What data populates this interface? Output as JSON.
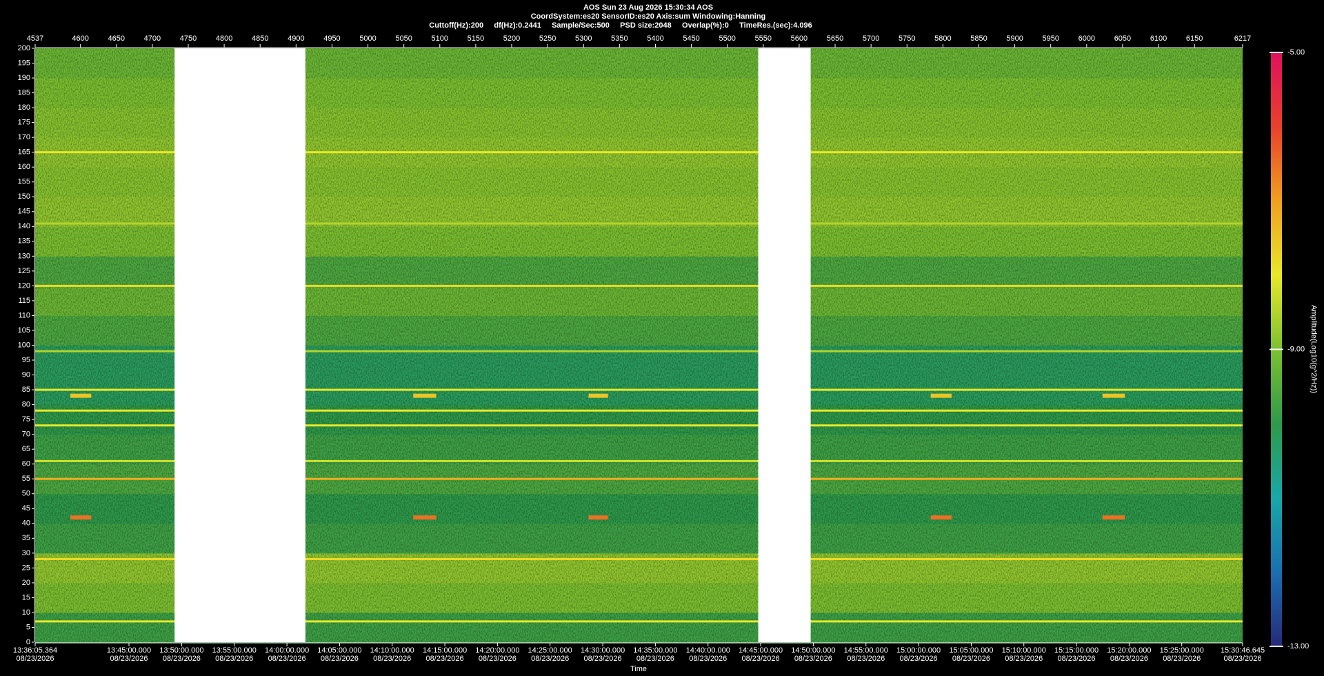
{
  "chart_data": {
    "type": "spectrogram",
    "title": "AOS  Sun 23 Aug 2026 15:30:34  AOS",
    "subtitle": "CoordSystem:es20   SensorID:es20   Axis:sum   Windowing:Hanning",
    "settings_line": "Cuttoff(Hz):200     df(Hz):0.2441     Sample/Sec:500     PSD size:2048     Overlap(%):0     TimeRes.(sec):4.096",
    "xlabel": "Time",
    "xlim": [
      4537,
      6217
    ],
    "xticks": [
      4537,
      4600,
      4650,
      4700,
      4750,
      4800,
      4850,
      4900,
      4950,
      5000,
      5050,
      5100,
      5150,
      5200,
      5250,
      5300,
      5350,
      5400,
      5450,
      5500,
      5550,
      5600,
      5650,
      5700,
      5750,
      5800,
      5850,
      5900,
      5950,
      6000,
      6050,
      6100,
      6150,
      6217
    ],
    "time_ticks": [
      {
        "value": 4537,
        "label": "13:36:05.364",
        "date": "08/23/2026"
      },
      {
        "value": 4667.5,
        "label": "13:45:00.000",
        "date": "08/23/2026"
      },
      {
        "value": 4740.8,
        "label": "13:50:00.000",
        "date": "08/23/2026"
      },
      {
        "value": 4814.0,
        "label": "13:55:00.000",
        "date": "08/23/2026"
      },
      {
        "value": 4887.3,
        "label": "14:00:00.000",
        "date": "08/23/2026"
      },
      {
        "value": 4960.5,
        "label": "14:05:00.000",
        "date": "08/23/2026"
      },
      {
        "value": 5033.7,
        "label": "14:10:00.000",
        "date": "08/23/2026"
      },
      {
        "value": 5107.0,
        "label": "14:15:00.000",
        "date": "08/23/2026"
      },
      {
        "value": 5180.2,
        "label": "14:20:00.000",
        "date": "08/23/2026"
      },
      {
        "value": 5253.4,
        "label": "14:25:00.000",
        "date": "08/23/2026"
      },
      {
        "value": 5326.7,
        "label": "14:30:00.000",
        "date": "08/23/2026"
      },
      {
        "value": 5399.9,
        "label": "14:35:00.000",
        "date": "08/23/2026"
      },
      {
        "value": 5473.2,
        "label": "14:40:00.000",
        "date": "08/23/2026"
      },
      {
        "value": 5546.4,
        "label": "14:45:00.000",
        "date": "08/23/2026"
      },
      {
        "value": 5619.6,
        "label": "14:50:00.000",
        "date": "08/23/2026"
      },
      {
        "value": 5692.9,
        "label": "14:55:00.000",
        "date": "08/23/2026"
      },
      {
        "value": 5766.1,
        "label": "15:00:00.000",
        "date": "08/23/2026"
      },
      {
        "value": 5839.4,
        "label": "15:05:00.000",
        "date": "08/23/2026"
      },
      {
        "value": 5912.6,
        "label": "15:10:00.000",
        "date": "08/23/2026"
      },
      {
        "value": 5985.8,
        "label": "15:15:00.000",
        "date": "08/23/2026"
      },
      {
        "value": 6059.1,
        "label": "15:20:00.000",
        "date": "08/23/2026"
      },
      {
        "value": 6132.3,
        "label": "15:25:00.000",
        "date": "08/23/2026"
      },
      {
        "value": 6217,
        "label": "15:30:46.645",
        "date": "08/23/2026"
      }
    ],
    "ylim": [
      0,
      200
    ],
    "yticks": [
      0,
      5,
      10,
      15,
      20,
      25,
      30,
      35,
      40,
      45,
      50,
      55,
      60,
      65,
      70,
      75,
      80,
      85,
      90,
      95,
      100,
      105,
      110,
      115,
      120,
      125,
      130,
      135,
      140,
      145,
      150,
      155,
      160,
      165,
      170,
      175,
      180,
      185,
      190,
      195,
      200
    ],
    "freq_bins": [
      0,
      10,
      20,
      30,
      40,
      50,
      60,
      70,
      80,
      90,
      100,
      110,
      120,
      130,
      140,
      150,
      160,
      170,
      180,
      190,
      200
    ],
    "amplitude": [
      -9.8,
      -9.0,
      -8.8,
      -9.8,
      -10.0,
      -9.6,
      -9.8,
      -10.0,
      -10.2,
      -10.2,
      -9.6,
      -9.2,
      -9.6,
      -9.0,
      -8.8,
      -8.9,
      -8.8,
      -8.9,
      -9.0,
      -9.2
    ],
    "tones": {
      "freq": [
        165,
        141,
        120,
        98,
        85,
        78,
        73,
        61,
        55,
        28,
        7
      ],
      "amplitude": [
        -8.0,
        -8.5,
        -7.8,
        -8.5,
        -8.0,
        -8.0,
        -8.0,
        -8.2,
        -7.2,
        -7.8,
        -8.0
      ]
    },
    "events": [
      {
        "x": [
          4586,
          4615
        ],
        "freq": 42,
        "amplitude": -6.5
      },
      {
        "x": [
          5063,
          5095
        ],
        "freq": 42,
        "amplitude": -6.5
      },
      {
        "x": [
          5307,
          5334
        ],
        "freq": 42,
        "amplitude": -6.5
      },
      {
        "x": [
          5783,
          5812
        ],
        "freq": 42,
        "amplitude": -6.5
      },
      {
        "x": [
          6022,
          6053
        ],
        "freq": 42,
        "amplitude": -6.5
      },
      {
        "x": [
          4586,
          4615
        ],
        "freq": 83,
        "amplitude": -7.5
      },
      {
        "x": [
          5063,
          5095
        ],
        "freq": 83,
        "amplitude": -7.5
      },
      {
        "x": [
          5307,
          5334
        ],
        "freq": 83,
        "amplitude": -7.5
      },
      {
        "x": [
          5783,
          5812
        ],
        "freq": 83,
        "amplitude": -7.5
      },
      {
        "x": [
          6022,
          6053
        ],
        "freq": 83,
        "amplitude": -7.5
      }
    ],
    "gaps": [
      [
        4731,
        4913
      ],
      [
        5543,
        5616
      ]
    ],
    "colorbar": {
      "label": "Amplitude(Log10(g^2/Hz))",
      "clim": [
        -13,
        -5
      ],
      "ticks": [
        {
          "value": -5,
          "label": "-5.00"
        },
        {
          "value": -9,
          "label": "-9.00"
        },
        {
          "value": -13,
          "label": "-13.00"
        }
      ],
      "colormap": [
        "#262a7a",
        "#1a6fb0",
        "#18a8a8",
        "#2e9a4a",
        "#7cc030",
        "#e8e82a",
        "#f0a020",
        "#e8402a",
        "#e01060"
      ]
    }
  }
}
